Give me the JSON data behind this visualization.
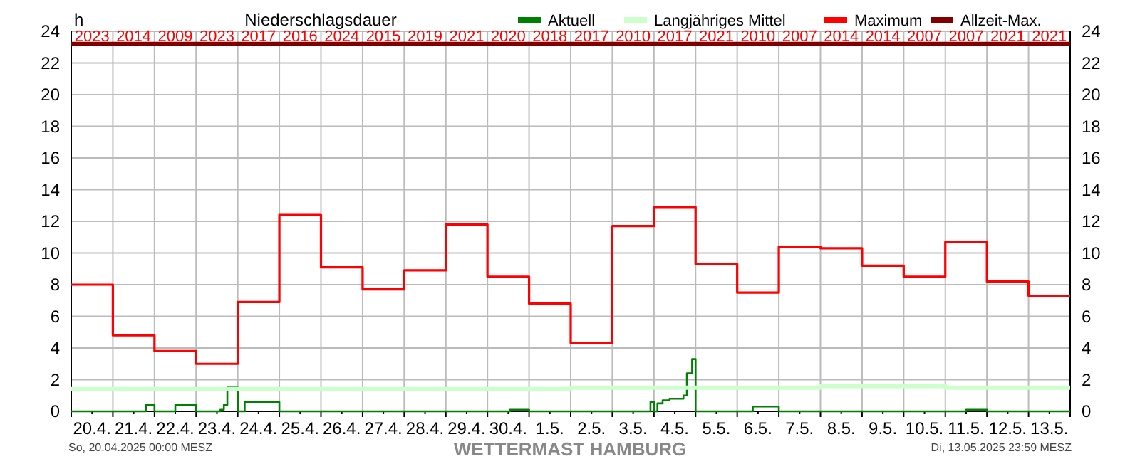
{
  "chart_data": {
    "type": "step",
    "title": "Niederschlagsdauer",
    "ylabel": "h",
    "xlim": [
      "2025-04-20T00:00",
      "2025-05-14T00:00"
    ],
    "xticks": [
      {
        "value": "2025-04-20T00:00",
        "label": null
      },
      {
        "value": "2025-04-20T12:00",
        "label": "20.4."
      },
      {
        "value": "2025-04-21T00:00",
        "label": null
      },
      {
        "value": "2025-04-21T12:00",
        "label": "21.4."
      },
      {
        "value": "2025-04-22T00:00",
        "label": null
      },
      {
        "value": "2025-04-22T12:00",
        "label": "22.4."
      },
      {
        "value": "2025-04-23T00:00",
        "label": null
      },
      {
        "value": "2025-04-23T12:00",
        "label": "23.4."
      },
      {
        "value": "2025-04-24T00:00",
        "label": null
      },
      {
        "value": "2025-04-24T12:00",
        "label": "24.4."
      },
      {
        "value": "2025-04-25T00:00",
        "label": null
      },
      {
        "value": "2025-04-25T12:00",
        "label": "25.4."
      },
      {
        "value": "2025-04-26T00:00",
        "label": null
      },
      {
        "value": "2025-04-26T12:00",
        "label": "26.4."
      },
      {
        "value": "2025-04-27T00:00",
        "label": null
      },
      {
        "value": "2025-04-27T12:00",
        "label": "27.4."
      },
      {
        "value": "2025-04-28T00:00",
        "label": null
      },
      {
        "value": "2025-04-28T12:00",
        "label": "28.4."
      },
      {
        "value": "2025-04-29T00:00",
        "label": null
      },
      {
        "value": "2025-04-29T12:00",
        "label": "29.4."
      },
      {
        "value": "2025-04-30T00:00",
        "label": null
      },
      {
        "value": "2025-04-30T12:00",
        "label": "30.4."
      },
      {
        "value": "2025-05-01T00:00",
        "label": null
      },
      {
        "value": "2025-05-01T12:00",
        "label": "1.5."
      },
      {
        "value": "2025-05-02T00:00",
        "label": null
      },
      {
        "value": "2025-05-02T12:00",
        "label": "2.5."
      },
      {
        "value": "2025-05-03T00:00",
        "label": null
      },
      {
        "value": "2025-05-03T12:00",
        "label": "3.5."
      },
      {
        "value": "2025-05-04T00:00",
        "label": null
      },
      {
        "value": "2025-05-04T12:00",
        "label": "4.5."
      },
      {
        "value": "2025-05-05T00:00",
        "label": null
      },
      {
        "value": "2025-05-05T12:00",
        "label": "5.5."
      },
      {
        "value": "2025-05-06T00:00",
        "label": null
      },
      {
        "value": "2025-05-06T12:00",
        "label": "6.5."
      },
      {
        "value": "2025-05-07T00:00",
        "label": null
      },
      {
        "value": "2025-05-07T12:00",
        "label": "7.5."
      },
      {
        "value": "2025-05-08T00:00",
        "label": null
      },
      {
        "value": "2025-05-08T12:00",
        "label": "8.5."
      },
      {
        "value": "2025-05-09T00:00",
        "label": null
      },
      {
        "value": "2025-05-09T12:00",
        "label": "9.5."
      },
      {
        "value": "2025-05-10T00:00",
        "label": null
      },
      {
        "value": "2025-05-10T12:00",
        "label": "10.5."
      },
      {
        "value": "2025-05-11T00:00",
        "label": null
      },
      {
        "value": "2025-05-11T12:00",
        "label": "11.5."
      },
      {
        "value": "2025-05-12T00:00",
        "label": null
      },
      {
        "value": "2025-05-12T12:00",
        "label": "12.5."
      },
      {
        "value": "2025-05-13T00:00",
        "label": null
      },
      {
        "value": "2025-05-13T12:00",
        "label": "13.5."
      },
      {
        "value": "2025-05-14T00:00",
        "label": null
      }
    ],
    "ylim": [
      0,
      24
    ],
    "yticks": [
      0,
      2,
      4,
      6,
      8,
      10,
      12,
      14,
      16,
      18,
      20,
      22,
      24
    ],
    "y2lim": [
      0,
      24
    ],
    "y2ticks": [
      0,
      2,
      4,
      6,
      8,
      10,
      12,
      14,
      16,
      18,
      20,
      22,
      24
    ],
    "grid": true,
    "legend": "top right",
    "series": [
      {
        "name": "Aktuell",
        "color": "#008000",
        "x": [
          "2025-04-20T00:00",
          "2025-04-21T19:00",
          "2025-04-22T00:00",
          "2025-04-22T12:00",
          "2025-04-23T00:00",
          "2025-04-23T14:00",
          "2025-04-23T16:00",
          "2025-04-23T18:00",
          "2025-04-24T00:00",
          "2025-04-24T04:00",
          "2025-04-25T00:00",
          "2025-04-30T13:00",
          "2025-05-01T00:00",
          "2025-05-03T22:00",
          "2025-05-04T00:00",
          "2025-05-04T02:00",
          "2025-05-04T05:00",
          "2025-05-04T09:00",
          "2025-05-04T17:00",
          "2025-05-04T19:00",
          "2025-05-04T22:00",
          "2025-05-05T00:00",
          "2025-05-06T09:00",
          "2025-05-07T00:00",
          "2025-05-11T12:00",
          "2025-05-12T00:00",
          "2025-05-14T00:00"
        ],
        "values": [
          0,
          0.4,
          0,
          0.4,
          0,
          0.1,
          0.4,
          1.5,
          0,
          0.6,
          0,
          0.1,
          0,
          0.6,
          0,
          0.5,
          0.7,
          0.8,
          1.0,
          2.4,
          3.3,
          0,
          0.3,
          0,
          0.1,
          0,
          0
        ]
      },
      {
        "name": "Langjähriges Mittel",
        "color": "#ccffcc",
        "x": [
          "2025-04-20T00:00",
          "2025-05-02T00:00",
          "2025-05-08T00:00",
          "2025-05-11T00:00",
          "2025-05-14T00:00"
        ],
        "values": [
          1.4,
          1.5,
          1.6,
          1.5,
          1.5
        ]
      },
      {
        "name": "Maximum",
        "color": "#ff0000",
        "x": [
          "2025-04-20T00:00",
          "2025-04-21T00:00",
          "2025-04-22T00:00",
          "2025-04-23T00:00",
          "2025-04-24T00:00",
          "2025-04-25T00:00",
          "2025-04-26T00:00",
          "2025-04-27T00:00",
          "2025-04-28T00:00",
          "2025-04-29T00:00",
          "2025-04-30T00:00",
          "2025-05-01T00:00",
          "2025-05-02T00:00",
          "2025-05-03T00:00",
          "2025-05-04T00:00",
          "2025-05-05T00:00",
          "2025-05-06T00:00",
          "2025-05-07T00:00",
          "2025-05-08T00:00",
          "2025-05-09T00:00",
          "2025-05-10T00:00",
          "2025-05-11T00:00",
          "2025-05-12T00:00",
          "2025-05-13T00:00",
          "2025-05-14T00:00"
        ],
        "values": [
          8.0,
          4.8,
          3.8,
          3.0,
          6.9,
          12.4,
          9.1,
          7.7,
          8.9,
          11.8,
          8.5,
          6.8,
          4.3,
          11.7,
          12.9,
          9.3,
          7.5,
          10.4,
          10.3,
          9.2,
          8.5,
          10.7,
          8.2,
          7.3,
          7.3
        ]
      },
      {
        "name": "Allzeit-Max.",
        "type": "line",
        "color": "#800000",
        "x": [
          "2025-04-20T00:00",
          "2025-05-14T00:00"
        ],
        "values": [
          23.2,
          23.2
        ]
      }
    ],
    "annotations": [
      {
        "text": "2023",
        "x": "2025-04-20T12:00",
        "y": 23.2
      },
      {
        "text": "2014",
        "x": "2025-04-21T12:00",
        "y": 23.2
      },
      {
        "text": "2009",
        "x": "2025-04-22T12:00",
        "y": 23.2
      },
      {
        "text": "2023",
        "x": "2025-04-23T12:00",
        "y": 23.2
      },
      {
        "text": "2017",
        "x": "2025-04-24T12:00",
        "y": 23.2
      },
      {
        "text": "2016",
        "x": "2025-04-25T12:00",
        "y": 23.2
      },
      {
        "text": "2024",
        "x": "2025-04-26T12:00",
        "y": 23.2
      },
      {
        "text": "2015",
        "x": "2025-04-27T12:00",
        "y": 23.2
      },
      {
        "text": "2019",
        "x": "2025-04-28T12:00",
        "y": 23.2
      },
      {
        "text": "2021",
        "x": "2025-04-29T12:00",
        "y": 23.2
      },
      {
        "text": "2020",
        "x": "2025-04-30T12:00",
        "y": 23.2
      },
      {
        "text": "2018",
        "x": "2025-05-01T12:00",
        "y": 23.2
      },
      {
        "text": "2017",
        "x": "2025-05-02T12:00",
        "y": 23.2
      },
      {
        "text": "2010",
        "x": "2025-05-03T12:00",
        "y": 23.2
      },
      {
        "text": "2017",
        "x": "2025-05-04T12:00",
        "y": 23.2
      },
      {
        "text": "2021",
        "x": "2025-05-05T12:00",
        "y": 23.2
      },
      {
        "text": "2010",
        "x": "2025-05-06T12:00",
        "y": 23.2
      },
      {
        "text": "2007",
        "x": "2025-05-07T12:00",
        "y": 23.2
      },
      {
        "text": "2014",
        "x": "2025-05-08T12:00",
        "y": 23.2
      },
      {
        "text": "2014",
        "x": "2025-05-09T12:00",
        "y": 23.2
      },
      {
        "text": "2007",
        "x": "2025-05-10T12:00",
        "y": 23.2
      },
      {
        "text": "2007",
        "x": "2025-05-11T12:00",
        "y": 23.2
      },
      {
        "text": "2021",
        "x": "2025-05-12T12:00",
        "y": 23.2
      },
      {
        "text": "2021",
        "x": "2025-05-13T12:00",
        "y": 23.2
      },
      "So, 20.04.2025 00:00 MESZ",
      "WETTERMAST HAMBURG",
      "Di, 13.05.2025 23:59 MESZ"
    ]
  }
}
